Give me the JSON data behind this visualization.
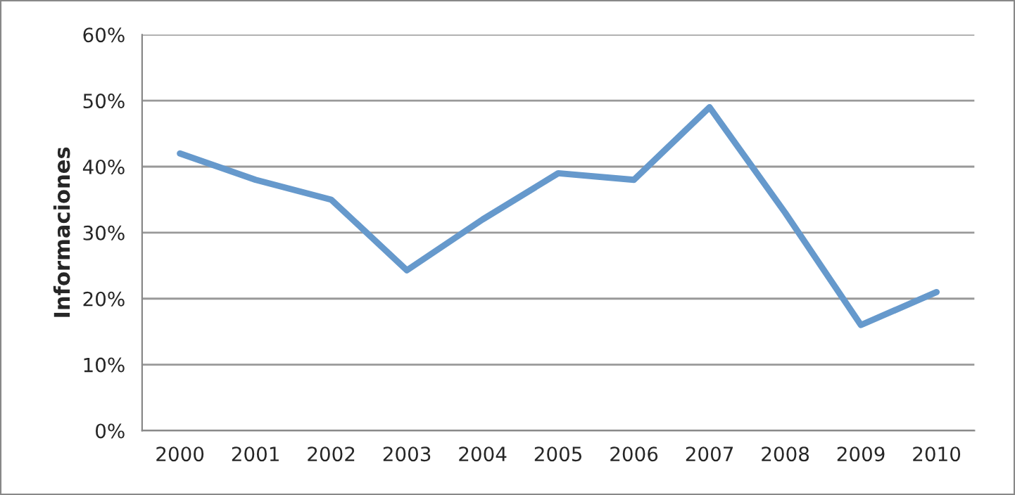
{
  "chart_data": {
    "type": "line",
    "ylabel": "Informaciones",
    "categories": [
      "2000",
      "2001",
      "2002",
      "2003",
      "2004",
      "2005",
      "2006",
      "2007",
      "2008",
      "2009",
      "2010"
    ],
    "series": [
      {
        "color": "#6699cc",
        "values": [
          42,
          38,
          35,
          24.3,
          32,
          39,
          38,
          49,
          33,
          16,
          21
        ]
      }
    ],
    "ylim": [
      0,
      60
    ],
    "yticks": [
      {
        "value": 0,
        "label": "0%"
      },
      {
        "value": 10,
        "label": "10%"
      },
      {
        "value": 20,
        "label": "20%"
      },
      {
        "value": 30,
        "label": "30%"
      },
      {
        "value": 40,
        "label": "40%"
      },
      {
        "value": 50,
        "label": "50%"
      },
      {
        "value": 60,
        "label": "60%"
      }
    ],
    "grid": "y",
    "legend": false,
    "marker": "none",
    "line_style": "solid"
  }
}
